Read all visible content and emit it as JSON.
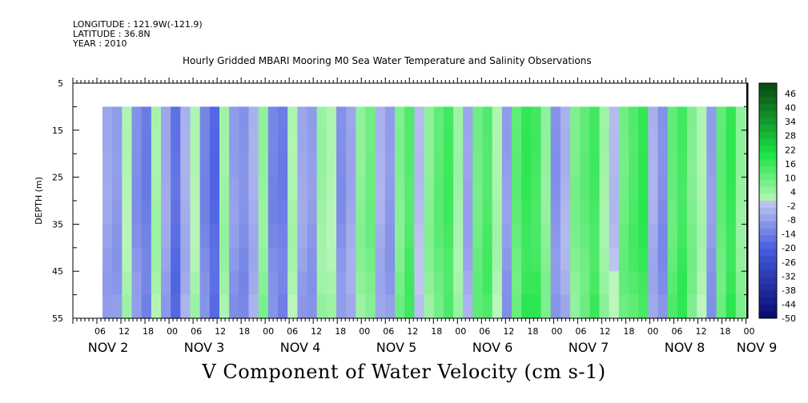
{
  "header": {
    "longitude": "LONGITUDE : 121.9W(-121.9)",
    "latitude": "LATITUDE : 36.8N",
    "year": "YEAR : 2010"
  },
  "chart_data": {
    "type": "heatmap",
    "title": "Hourly Gridded MBARI Mooring M0 Sea Water Temperature and Salinity Observations",
    "variable_label": "V Component of Water Velocity (cm s-1)",
    "ylabel": "DEPTH (m)",
    "y_axis": {
      "range": [
        5,
        55
      ],
      "direction": "down",
      "tick_labels": [
        "5",
        "15",
        "25",
        "35",
        "45",
        "55"
      ]
    },
    "data_depth_range": [
      10,
      55
    ],
    "x_hour_ticks": [
      "06",
      "12",
      "18",
      "00",
      "06",
      "12",
      "18",
      "00",
      "06",
      "12",
      "18",
      "00",
      "06",
      "12",
      "18",
      "00",
      "06",
      "12",
      "18",
      "00",
      "06",
      "12",
      "18",
      "00",
      "06",
      "12",
      "18",
      "00",
      "06",
      "12",
      "18",
      "00"
    ],
    "x_day_labels": [
      "NOV  2",
      "NOV  3",
      "NOV  4",
      "NOV  5",
      "NOV  6",
      "NOV  7",
      "NOV  8",
      "NOV  9"
    ],
    "colorbar": {
      "tick_labels": [
        "46",
        "40",
        "34",
        "28",
        "22",
        "16",
        "10",
        "4",
        "-2",
        "-8",
        "-14",
        "-20",
        "-26",
        "-32",
        "-38",
        "-44",
        "-50"
      ],
      "range": [
        -50,
        52
      ]
    },
    "time_series_v": [
      -6,
      -8,
      2,
      -10,
      -14,
      3,
      -6,
      -16,
      -4,
      2,
      -12,
      -18,
      4,
      -8,
      -10,
      -4,
      6,
      -12,
      -14,
      2,
      -6,
      -8,
      5,
      2,
      -10,
      -6,
      6,
      10,
      -4,
      -8,
      8,
      14,
      -2,
      6,
      12,
      16,
      4,
      -6,
      10,
      14,
      2,
      -8,
      12,
      18,
      16,
      6,
      -10,
      -4,
      8,
      12,
      16,
      4,
      -2,
      10,
      14,
      18,
      -4,
      -10,
      12,
      16,
      8,
      2,
      -8,
      12,
      18,
      6
    ]
  },
  "colors": {
    "positive_strong": "#12e23a",
    "positive_weak": "#b8f5b8",
    "negative_weak": "#b8c0ee",
    "negative_strong": "#3848d8"
  }
}
